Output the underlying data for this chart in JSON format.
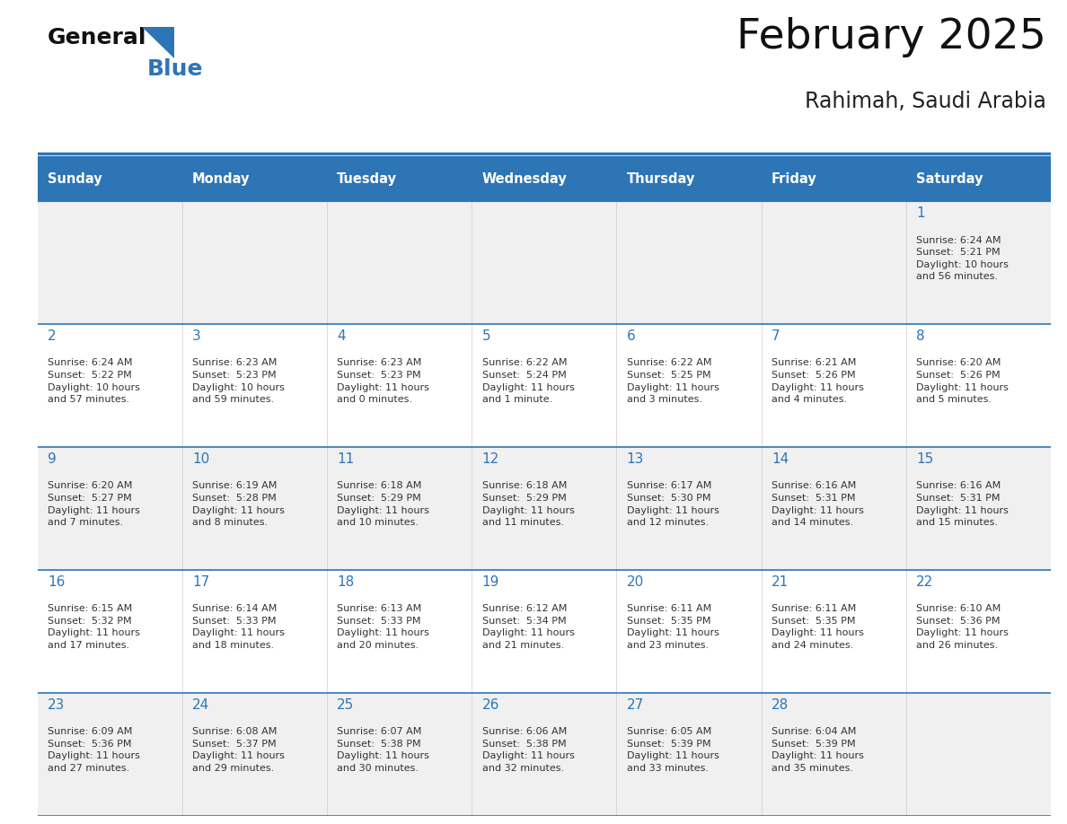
{
  "title": "February 2025",
  "subtitle": "Rahimah, Saudi Arabia",
  "header_bg": "#2e75b6",
  "header_fg": "#ffffff",
  "row_bg_gray": "#f0f0f0",
  "row_bg_white": "#ffffff",
  "day_num_color": "#2e75b6",
  "text_color": "#333333",
  "border_color": "#2e75b6",
  "logo_black": "#111111",
  "logo_blue": "#2e75b6",
  "days": [
    "Sunday",
    "Monday",
    "Tuesday",
    "Wednesday",
    "Thursday",
    "Friday",
    "Saturday"
  ],
  "weeks": [
    [
      null,
      null,
      null,
      null,
      null,
      null,
      {
        "d": 1,
        "sr": "6:24 AM",
        "ss": "5:21 PM",
        "dl": "10 hours\nand 56 minutes."
      }
    ],
    [
      {
        "d": 2,
        "sr": "6:24 AM",
        "ss": "5:22 PM",
        "dl": "10 hours\nand 57 minutes."
      },
      {
        "d": 3,
        "sr": "6:23 AM",
        "ss": "5:23 PM",
        "dl": "10 hours\nand 59 minutes."
      },
      {
        "d": 4,
        "sr": "6:23 AM",
        "ss": "5:23 PM",
        "dl": "11 hours\nand 0 minutes."
      },
      {
        "d": 5,
        "sr": "6:22 AM",
        "ss": "5:24 PM",
        "dl": "11 hours\nand 1 minute."
      },
      {
        "d": 6,
        "sr": "6:22 AM",
        "ss": "5:25 PM",
        "dl": "11 hours\nand 3 minutes."
      },
      {
        "d": 7,
        "sr": "6:21 AM",
        "ss": "5:26 PM",
        "dl": "11 hours\nand 4 minutes."
      },
      {
        "d": 8,
        "sr": "6:20 AM",
        "ss": "5:26 PM",
        "dl": "11 hours\nand 5 minutes."
      }
    ],
    [
      {
        "d": 9,
        "sr": "6:20 AM",
        "ss": "5:27 PM",
        "dl": "11 hours\nand 7 minutes."
      },
      {
        "d": 10,
        "sr": "6:19 AM",
        "ss": "5:28 PM",
        "dl": "11 hours\nand 8 minutes."
      },
      {
        "d": 11,
        "sr": "6:18 AM",
        "ss": "5:29 PM",
        "dl": "11 hours\nand 10 minutes."
      },
      {
        "d": 12,
        "sr": "6:18 AM",
        "ss": "5:29 PM",
        "dl": "11 hours\nand 11 minutes."
      },
      {
        "d": 13,
        "sr": "6:17 AM",
        "ss": "5:30 PM",
        "dl": "11 hours\nand 12 minutes."
      },
      {
        "d": 14,
        "sr": "6:16 AM",
        "ss": "5:31 PM",
        "dl": "11 hours\nand 14 minutes."
      },
      {
        "d": 15,
        "sr": "6:16 AM",
        "ss": "5:31 PM",
        "dl": "11 hours\nand 15 minutes."
      }
    ],
    [
      {
        "d": 16,
        "sr": "6:15 AM",
        "ss": "5:32 PM",
        "dl": "11 hours\nand 17 minutes."
      },
      {
        "d": 17,
        "sr": "6:14 AM",
        "ss": "5:33 PM",
        "dl": "11 hours\nand 18 minutes."
      },
      {
        "d": 18,
        "sr": "6:13 AM",
        "ss": "5:33 PM",
        "dl": "11 hours\nand 20 minutes."
      },
      {
        "d": 19,
        "sr": "6:12 AM",
        "ss": "5:34 PM",
        "dl": "11 hours\nand 21 minutes."
      },
      {
        "d": 20,
        "sr": "6:11 AM",
        "ss": "5:35 PM",
        "dl": "11 hours\nand 23 minutes."
      },
      {
        "d": 21,
        "sr": "6:11 AM",
        "ss": "5:35 PM",
        "dl": "11 hours\nand 24 minutes."
      },
      {
        "d": 22,
        "sr": "6:10 AM",
        "ss": "5:36 PM",
        "dl": "11 hours\nand 26 minutes."
      }
    ],
    [
      {
        "d": 23,
        "sr": "6:09 AM",
        "ss": "5:36 PM",
        "dl": "11 hours\nand 27 minutes."
      },
      {
        "d": 24,
        "sr": "6:08 AM",
        "ss": "5:37 PM",
        "dl": "11 hours\nand 29 minutes."
      },
      {
        "d": 25,
        "sr": "6:07 AM",
        "ss": "5:38 PM",
        "dl": "11 hours\nand 30 minutes."
      },
      {
        "d": 26,
        "sr": "6:06 AM",
        "ss": "5:38 PM",
        "dl": "11 hours\nand 32 minutes."
      },
      {
        "d": 27,
        "sr": "6:05 AM",
        "ss": "5:39 PM",
        "dl": "11 hours\nand 33 minutes."
      },
      {
        "d": 28,
        "sr": "6:04 AM",
        "ss": "5:39 PM",
        "dl": "11 hours\nand 35 minutes."
      },
      null
    ]
  ],
  "figsize": [
    11.88,
    9.18
  ],
  "dpi": 100
}
